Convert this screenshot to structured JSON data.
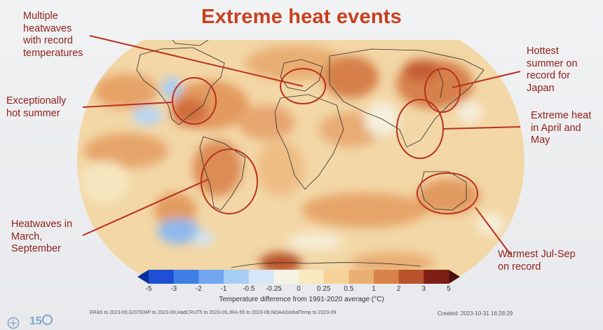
{
  "title": "Extreme heat events",
  "annotations": [
    {
      "id": "na-heat",
      "text": "Multiple\nheatwaves\nwith record\ntemperatures"
    },
    {
      "id": "us-hot",
      "text": "Exceptionally\nhot summer"
    },
    {
      "id": "sa-heat",
      "text": "Heatwaves in\nMarch,\nSeptember"
    },
    {
      "id": "japan",
      "text": "Hottest\nsummer on\nrecord for\nJapan"
    },
    {
      "id": "se-asia",
      "text": "Extreme heat\nin April and\nMay"
    },
    {
      "id": "australia",
      "text": "Warmest Jul-Sep\non record"
    }
  ],
  "colorbar": {
    "ticks": [
      "-5",
      "-3",
      "-2",
      "-1",
      "-0.5",
      "-0.25",
      "0",
      "0.25",
      "0.5",
      "1",
      "2",
      "3",
      "5"
    ],
    "colors": [
      "#1f4fd6",
      "#3f7ee6",
      "#6fa6ef",
      "#a6cdf5",
      "#d3e7f9",
      "#f5f2e4",
      "#f8e9bf",
      "#f5d398",
      "#eab072",
      "#d9834b",
      "#b8522c",
      "#7e1f15"
    ],
    "label": "Temperature difference from 1991-2020 average (°C)"
  },
  "sources": "ERA5 to 2023-09,GISTEMP to 2023-09,HadCRUT5 to 2023-09,JRA-55 to 2023-09,NOAAGlobalTemp to 2023-09",
  "created": "Created: 2023-10-31 16:28:29",
  "colors": {
    "title": "#c8401e",
    "annotation": "#8f1f1a",
    "circle": "#b8321e"
  },
  "icons": {
    "wmo_logo": "wmo-emblem-icon",
    "anniversary_logo": "150-anniversary-icon"
  },
  "logo_text": "15"
}
